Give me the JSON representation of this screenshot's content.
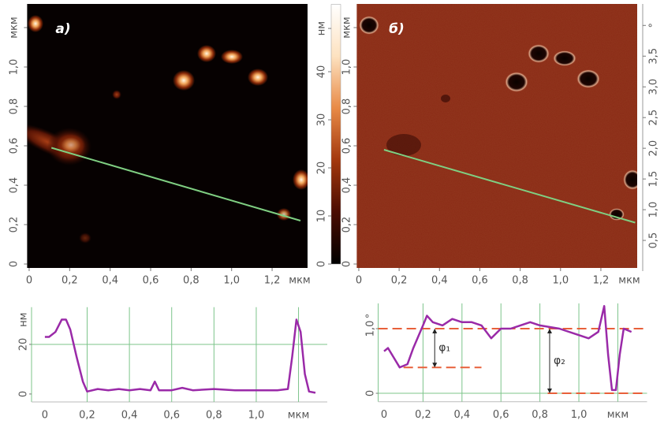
{
  "chart_data": [
    {
      "type": "image",
      "label": "а)",
      "xlabel": "мкм",
      "background": "#060101",
      "xlim": [
        -0.01,
        1.375
      ],
      "ylim": [
        -0.02,
        1.32
      ],
      "xticks": [
        0,
        {
          "value": 0.2,
          "label": "0,2"
        },
        {
          "value": 0.4,
          "label": "0,4"
        },
        {
          "value": 0.6,
          "label": "0,6"
        },
        {
          "value": 0.8,
          "label": "0,8"
        },
        {
          "value": 1.0,
          "label": "1,0"
        },
        {
          "value": 1.2,
          "label": "1,2"
        }
      ],
      "yticks": [
        0,
        {
          "value": 0.2,
          "label": "0,2"
        },
        {
          "value": 0.4,
          "label": "0,4"
        },
        {
          "value": 0.6,
          "label": "0,6"
        },
        {
          "value": 0.8,
          "label": "0,8"
        },
        {
          "value": 1.0,
          "label": "1,0"
        },
        {
          "value": 1.2,
          "label": "мкм"
        }
      ],
      "colorbar": {
        "lim": [
          0,
          54
        ],
        "ticks": [
          0,
          10,
          20,
          30,
          40,
          {
            "value": 49,
            "label": "нм"
          }
        ],
        "colors": [
          "#000000",
          "#4a0c02",
          "#a3380e",
          "#e88a46",
          "#fde2c0",
          "#ffffff"
        ]
      },
      "profile_line": {
        "x": [
          0.11,
          1.34
        ],
        "y": [
          0.59,
          0.22
        ],
        "color": "#7fcf82"
      }
    },
    {
      "type": "image",
      "label": "б)",
      "xlabel": "мкм",
      "background": "#8a2a15",
      "xlim": [
        -0.01,
        1.38
      ],
      "ylim": [
        -0.02,
        1.32
      ],
      "xticks": [
        0,
        {
          "value": 0.2,
          "label": "0,2"
        },
        {
          "value": 0.4,
          "label": "0,4"
        },
        {
          "value": 0.6,
          "label": "0,6"
        },
        {
          "value": 0.8,
          "label": "0,8"
        },
        {
          "value": 1.0,
          "label": "1,0"
        },
        {
          "value": 1.2,
          "label": "1,2"
        }
      ],
      "yticks": [
        0,
        {
          "value": 0.2,
          "label": "0,2"
        },
        {
          "value": 0.4,
          "label": "0,4"
        },
        {
          "value": 0.6,
          "label": "0,6"
        },
        {
          "value": 0.8,
          "label": "0,8"
        },
        {
          "value": 1.0,
          "label": "1,0"
        },
        {
          "value": 1.2,
          "label": "мкм"
        }
      ],
      "y2lim": [
        0,
        4.35
      ],
      "y2ticks": [
        {
          "value": 0.5,
          "label": "0,5"
        },
        {
          "value": 1.0,
          "label": "1,0"
        },
        {
          "value": 1.5,
          "label": "1,5"
        },
        {
          "value": 2.0,
          "label": "2,0"
        },
        {
          "value": 2.5,
          "label": "2,5"
        },
        {
          "value": 3.0,
          "label": "3,0"
        },
        {
          "value": 3.5,
          "label": "3,5"
        },
        {
          "value": 4.0,
          "label": "°"
        }
      ],
      "profile_line": {
        "x": [
          0.125,
          1.37
        ],
        "y": [
          0.58,
          0.21
        ],
        "color": "#7fcf82"
      }
    },
    {
      "type": "line",
      "ylabel": "нм",
      "color": "#9a2aa8",
      "grid_color": "#7cc48a",
      "xlim": [
        -0.063,
        1.336
      ],
      "ylim": [
        -3.2,
        35
      ],
      "xticks": [
        0,
        {
          "value": 0.2,
          "label": "0,2"
        },
        {
          "value": 0.4,
          "label": "0,4"
        },
        {
          "value": 0.6,
          "label": "0,6"
        },
        {
          "value": 0.8,
          "label": "0,8"
        },
        {
          "value": 1.0,
          "label": "1,0"
        },
        {
          "value": 1.2,
          "label": "мкм"
        }
      ],
      "yticks": [
        0,
        20
      ],
      "hlines": [
        20
      ],
      "x": [
        0,
        0.02,
        0.05,
        0.08,
        0.1,
        0.12,
        0.15,
        0.18,
        0.2,
        0.25,
        0.3,
        0.35,
        0.4,
        0.45,
        0.5,
        0.52,
        0.54,
        0.6,
        0.65,
        0.7,
        0.8,
        0.9,
        1.0,
        1.1,
        1.15,
        1.17,
        1.19,
        1.21,
        1.23,
        1.25,
        1.28
      ],
      "values": [
        23,
        23,
        25,
        30,
        30,
        26,
        15,
        5,
        1,
        2,
        1.5,
        2,
        1.5,
        2,
        1.5,
        5,
        1.5,
        1.5,
        2.5,
        1.5,
        2,
        1.5,
        1.5,
        1.5,
        2,
        15,
        30,
        25,
        8,
        1,
        0.5
      ]
    },
    {
      "type": "line",
      "ylabel": "°",
      "color": "#9a2aa8",
      "grid_color": "#7cc48a",
      "ref_color": "#e8603a",
      "xlim": [
        -0.03,
        1.35
      ],
      "ylim": [
        -0.13,
        1.39
      ],
      "xticks": [
        0,
        {
          "value": 0.2,
          "label": "0,2"
        },
        {
          "value": 0.4,
          "label": "0,4"
        },
        {
          "value": 0.6,
          "label": "0,6"
        },
        {
          "value": 0.8,
          "label": "0,8"
        },
        {
          "value": 1.0,
          "label": "1,0"
        },
        {
          "value": 1.2,
          "label": "мкм"
        }
      ],
      "yticks": [
        0,
        {
          "value": 1.0,
          "label": "1,0"
        }
      ],
      "hlines": [
        0
      ],
      "ref_lines": [
        {
          "y": 1.0,
          "x": [
            -0.03,
            1.35
          ]
        },
        {
          "y": 0.4,
          "x": [
            0.1,
            0.5
          ]
        },
        {
          "y": 0,
          "x": [
            0.84,
            1.35
          ]
        }
      ],
      "arrows": [
        {
          "text": "φ₁",
          "x": 0.26,
          "y": [
            1.0,
            0.4
          ]
        },
        {
          "text": "φ₂",
          "x": 0.85,
          "y": [
            1.0,
            0
          ]
        }
      ],
      "x": [
        0,
        0.02,
        0.05,
        0.08,
        0.12,
        0.15,
        0.2,
        0.22,
        0.25,
        0.3,
        0.35,
        0.4,
        0.45,
        0.5,
        0.55,
        0.6,
        0.65,
        0.7,
        0.75,
        0.8,
        0.9,
        1.0,
        1.05,
        1.1,
        1.13,
        1.15,
        1.17,
        1.19,
        1.21,
        1.23,
        1.27
      ],
      "values": [
        0.65,
        0.7,
        0.55,
        0.4,
        0.45,
        0.7,
        1.05,
        1.2,
        1.1,
        1.05,
        1.15,
        1.1,
        1.1,
        1.05,
        0.85,
        1.0,
        1.0,
        1.05,
        1.1,
        1.05,
        1.0,
        0.9,
        0.85,
        0.95,
        1.35,
        0.6,
        0.05,
        0.05,
        0.6,
        1.0,
        0.95
      ]
    }
  ]
}
